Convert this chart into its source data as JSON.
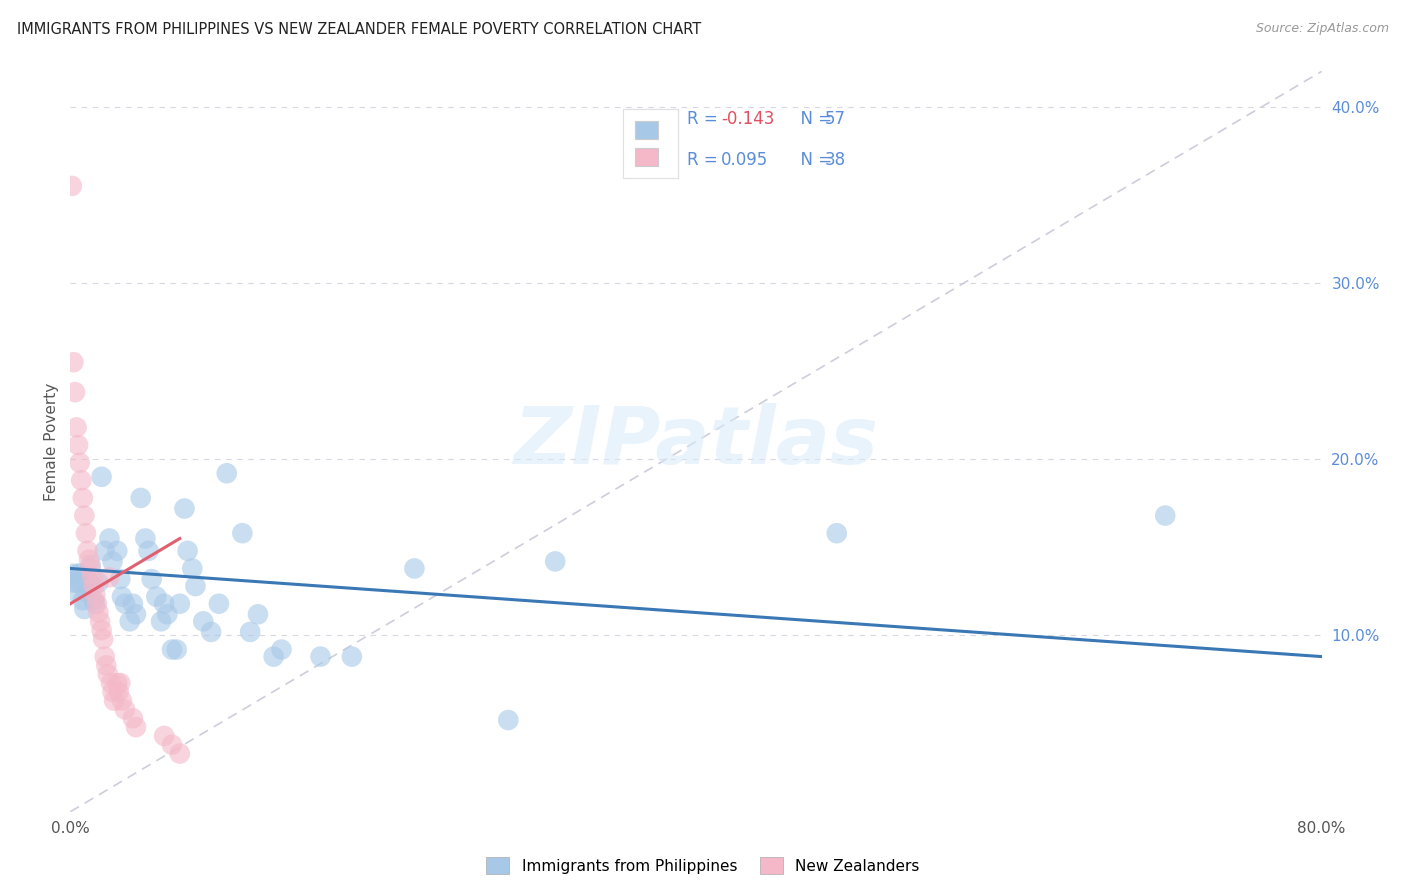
{
  "title": "IMMIGRANTS FROM PHILIPPINES VS NEW ZEALANDER FEMALE POVERTY CORRELATION CHART",
  "source": "Source: ZipAtlas.com",
  "ylabel": "Female Poverty",
  "xlim": [
    0.0,
    0.8
  ],
  "ylim": [
    0.0,
    0.42
  ],
  "xticks": [
    0.0,
    0.1,
    0.2,
    0.3,
    0.4,
    0.5,
    0.6,
    0.7,
    0.8
  ],
  "xticklabels": [
    "0.0%",
    "",
    "",
    "",
    "",
    "",
    "",
    "",
    "80.0%"
  ],
  "yticks_right": [
    0.1,
    0.2,
    0.3,
    0.4
  ],
  "ytick_labels_right": [
    "10.0%",
    "20.0%",
    "30.0%",
    "40.0%"
  ],
  "legend_bottom_blue": "Immigrants from Philippines",
  "legend_bottom_pink": "New Zealanders",
  "watermark": "ZIPatlas",
  "blue_color": "#a8c8e8",
  "pink_color": "#f4b8c8",
  "blue_line_color": "#3a78b5",
  "pink_line_color": "#e06070",
  "diag_color": "#c8c8d8",
  "grid_color": "#d8d8e4",
  "legend_text_color": "#5b8dd9",
  "blue_R_color": "#e05060",
  "blue_scatter": [
    [
      0.001,
      0.135
    ],
    [
      0.002,
      0.13
    ],
    [
      0.003,
      0.125
    ],
    [
      0.004,
      0.13
    ],
    [
      0.005,
      0.135
    ],
    [
      0.006,
      0.135
    ],
    [
      0.007,
      0.13
    ],
    [
      0.008,
      0.12
    ],
    [
      0.009,
      0.115
    ],
    [
      0.01,
      0.125
    ],
    [
      0.012,
      0.13
    ],
    [
      0.013,
      0.14
    ],
    [
      0.015,
      0.12
    ],
    [
      0.016,
      0.118
    ],
    [
      0.018,
      0.13
    ],
    [
      0.02,
      0.19
    ],
    [
      0.022,
      0.148
    ],
    [
      0.025,
      0.155
    ],
    [
      0.027,
      0.142
    ],
    [
      0.03,
      0.148
    ],
    [
      0.032,
      0.132
    ],
    [
      0.033,
      0.122
    ],
    [
      0.035,
      0.118
    ],
    [
      0.038,
      0.108
    ],
    [
      0.04,
      0.118
    ],
    [
      0.042,
      0.112
    ],
    [
      0.045,
      0.178
    ],
    [
      0.048,
      0.155
    ],
    [
      0.05,
      0.148
    ],
    [
      0.052,
      0.132
    ],
    [
      0.055,
      0.122
    ],
    [
      0.058,
      0.108
    ],
    [
      0.06,
      0.118
    ],
    [
      0.062,
      0.112
    ],
    [
      0.065,
      0.092
    ],
    [
      0.068,
      0.092
    ],
    [
      0.07,
      0.118
    ],
    [
      0.073,
      0.172
    ],
    [
      0.075,
      0.148
    ],
    [
      0.078,
      0.138
    ],
    [
      0.08,
      0.128
    ],
    [
      0.085,
      0.108
    ],
    [
      0.09,
      0.102
    ],
    [
      0.095,
      0.118
    ],
    [
      0.1,
      0.192
    ],
    [
      0.11,
      0.158
    ],
    [
      0.115,
      0.102
    ],
    [
      0.12,
      0.112
    ],
    [
      0.13,
      0.088
    ],
    [
      0.135,
      0.092
    ],
    [
      0.16,
      0.088
    ],
    [
      0.18,
      0.088
    ],
    [
      0.22,
      0.138
    ],
    [
      0.28,
      0.052
    ],
    [
      0.31,
      0.142
    ],
    [
      0.49,
      0.158
    ],
    [
      0.7,
      0.168
    ]
  ],
  "pink_scatter": [
    [
      0.001,
      0.355
    ],
    [
      0.002,
      0.255
    ],
    [
      0.003,
      0.238
    ],
    [
      0.004,
      0.218
    ],
    [
      0.005,
      0.208
    ],
    [
      0.006,
      0.198
    ],
    [
      0.007,
      0.188
    ],
    [
      0.008,
      0.178
    ],
    [
      0.009,
      0.168
    ],
    [
      0.01,
      0.158
    ],
    [
      0.011,
      0.148
    ],
    [
      0.012,
      0.143
    ],
    [
      0.013,
      0.138
    ],
    [
      0.014,
      0.133
    ],
    [
      0.015,
      0.128
    ],
    [
      0.016,
      0.123
    ],
    [
      0.017,
      0.118
    ],
    [
      0.018,
      0.113
    ],
    [
      0.019,
      0.108
    ],
    [
      0.02,
      0.103
    ],
    [
      0.021,
      0.098
    ],
    [
      0.022,
      0.088
    ],
    [
      0.023,
      0.083
    ],
    [
      0.024,
      0.078
    ],
    [
      0.025,
      0.133
    ],
    [
      0.026,
      0.073
    ],
    [
      0.027,
      0.068
    ],
    [
      0.028,
      0.063
    ],
    [
      0.03,
      0.073
    ],
    [
      0.031,
      0.068
    ],
    [
      0.032,
      0.073
    ],
    [
      0.033,
      0.063
    ],
    [
      0.035,
      0.058
    ],
    [
      0.04,
      0.053
    ],
    [
      0.042,
      0.048
    ],
    [
      0.06,
      0.043
    ],
    [
      0.065,
      0.038
    ],
    [
      0.07,
      0.033
    ]
  ],
  "blue_trend": [
    0.0,
    0.8,
    0.138,
    0.088
  ],
  "pink_trend": [
    0.0,
    0.07,
    0.118,
    0.155
  ]
}
